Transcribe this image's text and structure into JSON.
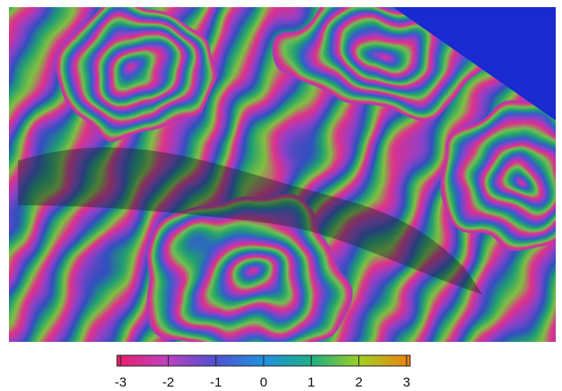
{
  "colorbar": {
    "min": -3,
    "max": 3,
    "ticks": [
      -3,
      -2,
      -1,
      0,
      1,
      2,
      3
    ]
  }
}
